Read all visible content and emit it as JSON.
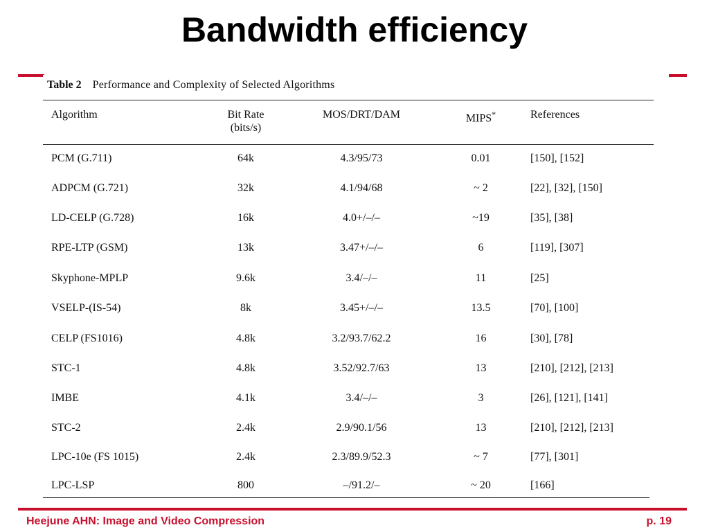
{
  "title": "Bandwidth efficiency",
  "table": {
    "label": "Table 2",
    "caption": "Performance and Complexity of Selected Algorithms",
    "headers": {
      "algorithm": "Algorithm",
      "bitrate_line1": "Bit Rate",
      "bitrate_line2": "(bits/s)",
      "mos": "MOS/DRT/DAM",
      "mips": "MIPS",
      "mips_mark": "*",
      "references": "References"
    },
    "rows": [
      {
        "algorithm": "PCM (G.711)",
        "bitrate": "64k",
        "mos": "4.3/95/73",
        "mips": "0.01",
        "refs": "[150], [152]"
      },
      {
        "algorithm": "ADPCM (G.721)",
        "bitrate": "32k",
        "mos": "4.1/94/68",
        "mips": "~ 2",
        "refs": "[22], [32], [150]"
      },
      {
        "algorithm": "LD-CELP (G.728)",
        "bitrate": "16k",
        "mos": "4.0+/–/–",
        "mips": "~19",
        "refs": "[35], [38]"
      },
      {
        "algorithm": "RPE-LTP (GSM)",
        "bitrate": "13k",
        "mos": "3.47+/–/–",
        "mips": "6",
        "refs": "[119], [307]"
      },
      {
        "algorithm": "Skyphone-MPLP",
        "bitrate": "9.6k",
        "mos": "3.4/–/–",
        "mips": "11",
        "refs": "[25]"
      },
      {
        "algorithm": "VSELP-(IS-54)",
        "bitrate": "8k",
        "mos": "3.45+/–/–",
        "mips": "13.5",
        "refs": "[70], [100]"
      },
      {
        "algorithm": "CELP (FS1016)",
        "bitrate": "4.8k",
        "mos": "3.2/93.7/62.2",
        "mips": "16",
        "refs": "[30], [78]"
      },
      {
        "algorithm": "STC-1",
        "bitrate": "4.8k",
        "mos": "3.52/92.7/63",
        "mips": "13",
        "refs": "[210], [212], [213]"
      },
      {
        "algorithm": "IMBE",
        "bitrate": "4.1k",
        "mos": "3.4/–/–",
        "mips": "3",
        "refs": "[26], [121], [141]"
      },
      {
        "algorithm": "STC-2",
        "bitrate": "2.4k",
        "mos": "2.9/90.1/56",
        "mips": "13",
        "refs": "[210], [212], [213]"
      },
      {
        "algorithm": "LPC-10e (FS 1015)",
        "bitrate": "2.4k",
        "mos": "2.3/89.9/52.3",
        "mips": "~ 7",
        "refs": "[77], [301]"
      },
      {
        "algorithm": "LPC-LSP",
        "bitrate": "800",
        "mos": "–/91.2/–",
        "mips": "~ 20",
        "refs": "[166]"
      }
    ]
  },
  "footer": {
    "left": "Heejune AHN: Image and Video Compression",
    "right": "p. 19"
  },
  "colors": {
    "accent": "#c8102e"
  }
}
